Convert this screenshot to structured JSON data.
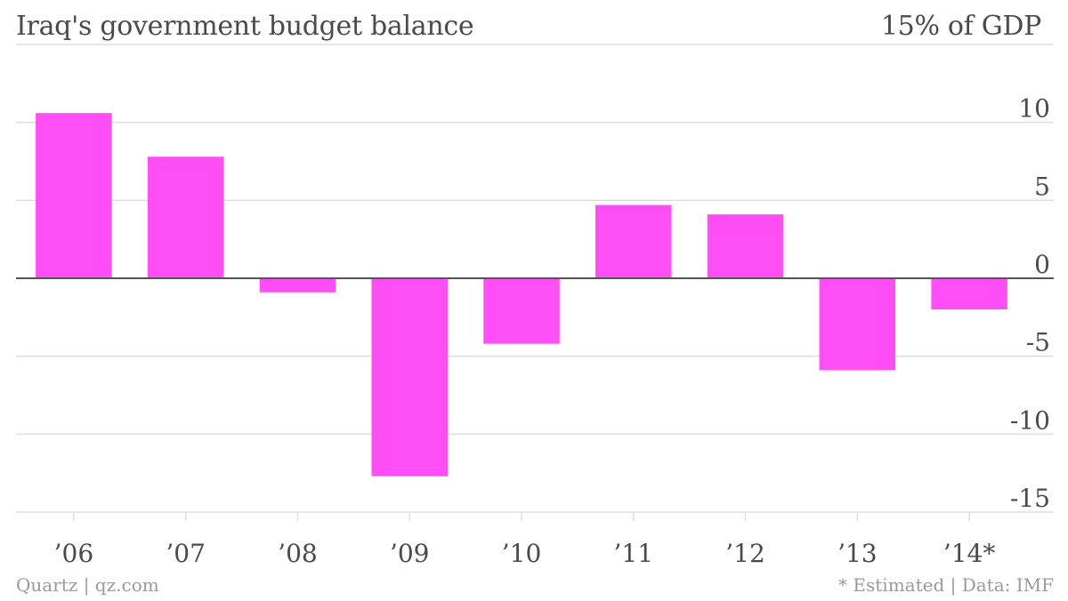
{
  "header": {
    "title": "Iraq's government budget balance",
    "top_label": "15% of GDP"
  },
  "footer": {
    "credit": "Quartz | qz.com",
    "source": "* Estimated | Data: IMF"
  },
  "colors": {
    "bar": "#ff4ef5",
    "grid": "#dddddd",
    "zero_line": "#555555",
    "tick_text": "#4a4a4a"
  },
  "chart_data": {
    "type": "bar",
    "title": "Iraq's government budget balance",
    "ylabel": "% of GDP",
    "categories": [
      "’06",
      "’07",
      "’08",
      "’09",
      "’10",
      "’11",
      "’12",
      "’13",
      "’14*"
    ],
    "values": [
      10.6,
      7.8,
      -0.9,
      -12.7,
      -4.2,
      4.7,
      4.1,
      -5.9,
      -2.0
    ],
    "ylim": [
      -15,
      15
    ],
    "yticks": [
      15,
      10,
      5,
      0,
      -5,
      -10,
      -15
    ],
    "ytick_labels": [
      "15",
      "10",
      "5",
      "0",
      "-5",
      "-10",
      "-15"
    ],
    "grid": true,
    "legend": "none"
  }
}
